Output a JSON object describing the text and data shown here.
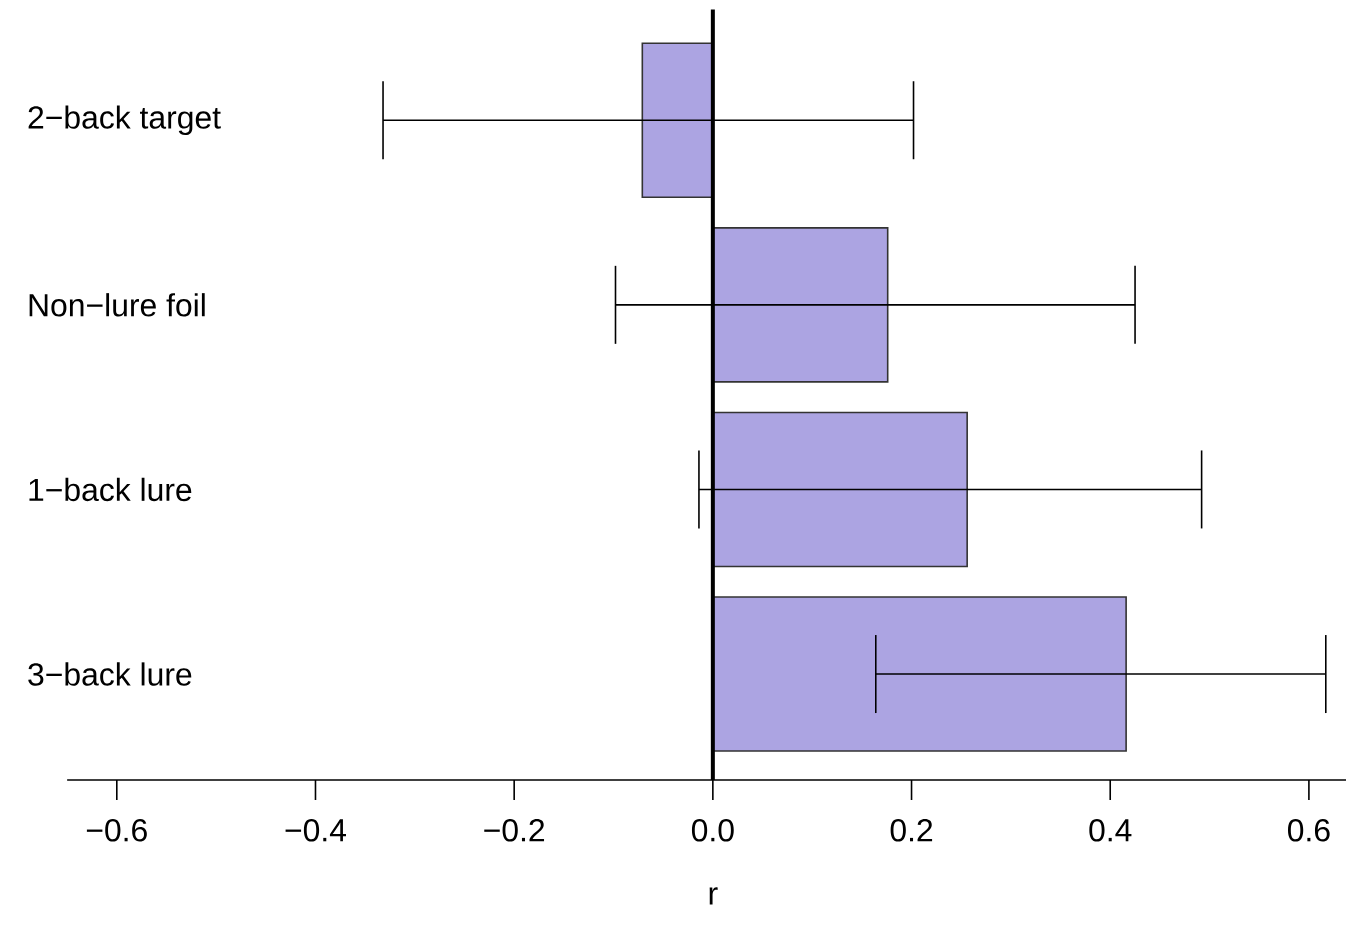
{
  "chart_data": {
    "type": "bar",
    "orientation": "horizontal",
    "categories": [
      "2−back target",
      "Non−lure foil",
      "1−back lure",
      "3−back lure"
    ],
    "values": [
      -0.071,
      0.176,
      0.256,
      0.416
    ],
    "color": "#aca4e2",
    "errors": [
      [
        -0.332,
        0.202
      ],
      [
        -0.098,
        0.425
      ],
      [
        -0.014,
        0.492
      ],
      [
        0.164,
        0.617
      ]
    ],
    "xlim": [
      -0.65,
      0.65
    ],
    "xticks": [
      {
        "value": -0.6,
        "label": "−0.6"
      },
      {
        "value": -0.4,
        "label": "−0.4"
      },
      {
        "value": -0.2,
        "label": "−0.2"
      },
      {
        "value": 0,
        "label": "0.0"
      },
      {
        "value": 0.2,
        "label": "0.2"
      },
      {
        "value": 0.4,
        "label": "0.4"
      },
      {
        "value": 0.6,
        "label": "0.6"
      }
    ],
    "xlabel": "r",
    "ref_lines": [
      {
        "axis": "x",
        "value": 0
      }
    ]
  }
}
